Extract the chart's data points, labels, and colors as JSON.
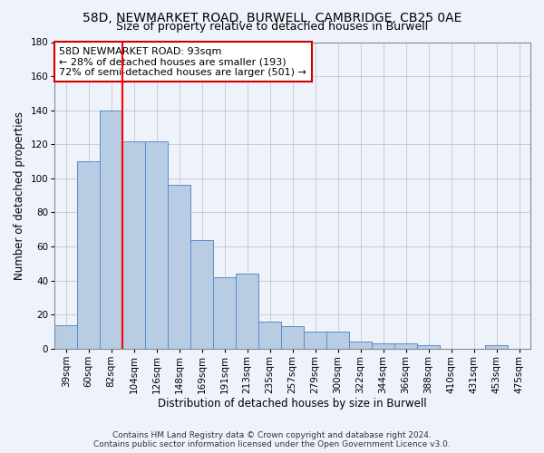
{
  "title": "58D, NEWMARKET ROAD, BURWELL, CAMBRIDGE, CB25 0AE",
  "subtitle": "Size of property relative to detached houses in Burwell",
  "xlabel": "Distribution of detached houses by size in Burwell",
  "ylabel": "Number of detached properties",
  "categories": [
    "39sqm",
    "60sqm",
    "82sqm",
    "104sqm",
    "126sqm",
    "148sqm",
    "169sqm",
    "191sqm",
    "213sqm",
    "235sqm",
    "257sqm",
    "279sqm",
    "300sqm",
    "322sqm",
    "344sqm",
    "366sqm",
    "388sqm",
    "410sqm",
    "431sqm",
    "453sqm",
    "475sqm"
  ],
  "values": [
    14,
    110,
    140,
    122,
    122,
    96,
    64,
    42,
    44,
    16,
    13,
    10,
    10,
    4,
    3,
    3,
    2,
    0,
    0,
    2,
    0
  ],
  "bar_color": "#b8cce4",
  "bar_edge_color": "#5b8cc8",
  "red_line_x": 2.5,
  "ylim": [
    0,
    180
  ],
  "yticks": [
    0,
    20,
    40,
    60,
    80,
    100,
    120,
    140,
    160,
    180
  ],
  "annotation_text": "58D NEWMARKET ROAD: 93sqm\n← 28% of detached houses are smaller (193)\n72% of semi-detached houses are larger (501) →",
  "annotation_box_color": "#ffffff",
  "annotation_box_edge_color": "#cc0000",
  "footer_line1": "Contains HM Land Registry data © Crown copyright and database right 2024.",
  "footer_line2": "Contains public sector information licensed under the Open Government Licence v3.0.",
  "bg_color": "#eef2fb",
  "grid_color": "#c8c8c8",
  "title_fontsize": 10,
  "subtitle_fontsize": 9,
  "axis_label_fontsize": 8.5,
  "tick_fontsize": 7.5,
  "annotation_fontsize": 8,
  "footer_fontsize": 6.5
}
